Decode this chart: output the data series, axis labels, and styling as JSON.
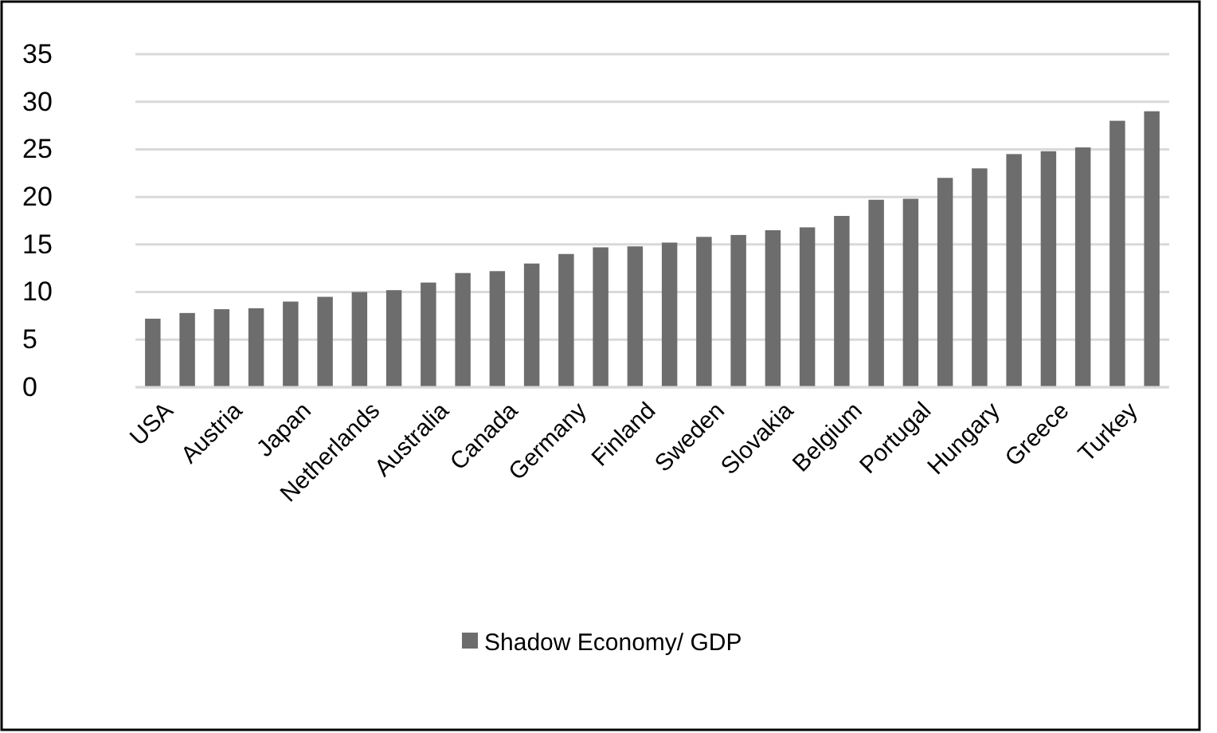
{
  "chart_data": {
    "type": "bar",
    "categories": [
      "USA",
      null,
      "Austria",
      null,
      "Japan",
      null,
      "Netherlands",
      null,
      "Australia",
      null,
      "Canada",
      null,
      "Germany",
      null,
      "Finland",
      null,
      "Sweden",
      null,
      "Slovakia",
      null,
      "Belgium",
      null,
      "Portugal",
      null,
      "Hungary",
      null,
      "Greece",
      null,
      "Turkey",
      null
    ],
    "series": [
      {
        "name": "Shadow Economy/ GDP",
        "color": "#6d6d6d",
        "values": [
          7.2,
          7.8,
          8.2,
          8.3,
          9.0,
          9.5,
          10.0,
          10.2,
          11.0,
          12.0,
          12.2,
          13.0,
          14.0,
          14.7,
          14.8,
          15.2,
          15.8,
          16.0,
          16.5,
          16.8,
          18.0,
          19.7,
          19.8,
          22.0,
          23.0,
          24.5,
          24.8,
          25.2,
          28.0,
          29.0
        ]
      }
    ],
    "ylim": [
      0,
      35
    ],
    "yticks": [
      0,
      5,
      10,
      15,
      20,
      25,
      30,
      35
    ],
    "grid": "y",
    "legend": "bottom"
  }
}
